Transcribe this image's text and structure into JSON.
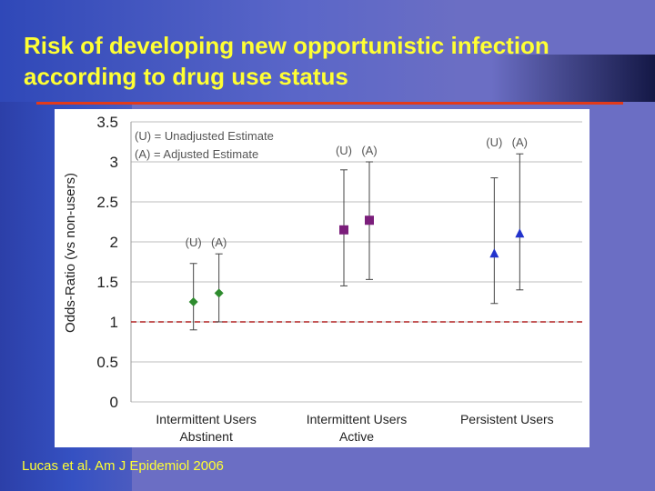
{
  "slide": {
    "title": "Risk of developing new opportunistic infection according to drug use status",
    "citation": "Lucas et al. Am J Epidemiol 2006",
    "colors": {
      "title": "#ffff33",
      "background": "#6b6ec4",
      "rule": "#e23a1a"
    }
  },
  "chart_data": {
    "type": "scatter",
    "ylabel": "Odds-Ratio (vs non-users)",
    "ylim": [
      0,
      3.5
    ],
    "yticks": [
      "0",
      "0.5",
      "1",
      "1.5",
      "2",
      "2.5",
      "3",
      "3.5"
    ],
    "grid": true,
    "reference_line": {
      "y": 1,
      "style": "dashed",
      "color": "#b02020"
    },
    "legend_text": [
      "(U) = Unadjusted Estimate",
      "(A) = Adjusted Estimate"
    ],
    "legend_placement": "top-left",
    "groups": [
      {
        "category": [
          "Intermittent Users",
          "Abstinent"
        ],
        "color": "#2e8b2e",
        "marker": "diamond",
        "labels": [
          "(U)",
          "(A)"
        ],
        "estimates": [
          {
            "label": "(U)",
            "value": 1.25,
            "lower": 0.9,
            "upper": 1.73
          },
          {
            "label": "(A)",
            "value": 1.36,
            "lower": 1.0,
            "upper": 1.85
          }
        ]
      },
      {
        "category": [
          "Intermittent Users",
          "Active"
        ],
        "color": "#7b1e7b",
        "marker": "square",
        "labels": [
          "(U)",
          "(A)"
        ],
        "estimates": [
          {
            "label": "(U)",
            "value": 2.15,
            "lower": 1.45,
            "upper": 2.9
          },
          {
            "label": "(A)",
            "value": 2.27,
            "lower": 1.53,
            "upper": 3.0
          }
        ]
      },
      {
        "category": [
          "Persistent Users"
        ],
        "color": "#2233cc",
        "marker": "triangle",
        "labels": [
          "(U)",
          "(A)"
        ],
        "estimates": [
          {
            "label": "(U)",
            "value": 1.85,
            "lower": 1.23,
            "upper": 2.8
          },
          {
            "label": "(A)",
            "value": 2.1,
            "lower": 1.4,
            "upper": 3.1
          }
        ]
      }
    ]
  }
}
